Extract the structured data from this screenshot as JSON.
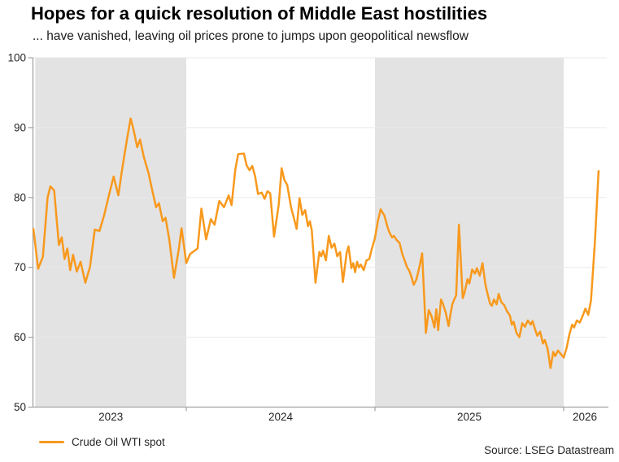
{
  "header": {
    "title": "Hopes for a quick resolution of Middle East hostilities",
    "subtitle": "... have vanished, leaving oil prices prone to jumps upon geopolitical newsflow"
  },
  "legend": {
    "label": "Crude Oil WTI spot"
  },
  "source": {
    "text": "Source: LSEG Datastream"
  },
  "colors": {
    "line": "#F8991D",
    "band": "#E3E3E3",
    "grid": "#EAEAEA",
    "axis": "#A3A3A3",
    "tick_label": "#262626"
  },
  "chart_data": {
    "type": "line",
    "title": "Hopes for a quick resolution of Middle East hostilities",
    "subtitle": "... have vanished, leaving oil prices prone to jumps upon geopolitical newsflow",
    "xlabel": "",
    "ylabel": "",
    "grid": true,
    "legend_position": "bottom-left",
    "ylim": [
      50,
      100
    ],
    "y_ticks": [
      50,
      60,
      70,
      80,
      90,
      100
    ],
    "x_domain_years": [
      2023.185,
      2026.228
    ],
    "x_tick_years": [
      2024,
      2025,
      2026
    ],
    "year_labels": [
      {
        "text": "2023",
        "year": 2023.6
      },
      {
        "text": "2024",
        "year": 2024.5
      },
      {
        "text": "2025",
        "year": 2025.5
      },
      {
        "text": "2026",
        "year": 2026.112
      }
    ],
    "shaded_year_bands": [
      [
        2023.2,
        2024.0
      ],
      [
        2025.0,
        2026.0
      ]
    ],
    "series": [
      {
        "name": "Crude Oil WTI spot",
        "color": "#F8991D",
        "points": [
          [
            2023.19,
            75.5
          ],
          [
            2023.215,
            69.8
          ],
          [
            2023.24,
            71.5
          ],
          [
            2023.265,
            80.0
          ],
          [
            2023.28,
            81.6
          ],
          [
            2023.3,
            81.0
          ],
          [
            2023.325,
            73.2
          ],
          [
            2023.34,
            74.3
          ],
          [
            2023.355,
            71.2
          ],
          [
            2023.37,
            72.7
          ],
          [
            2023.385,
            69.6
          ],
          [
            2023.4,
            71.8
          ],
          [
            2023.42,
            69.4
          ],
          [
            2023.44,
            70.8
          ],
          [
            2023.465,
            67.8
          ],
          [
            2023.49,
            70.1
          ],
          [
            2023.515,
            75.4
          ],
          [
            2023.54,
            75.2
          ],
          [
            2023.565,
            77.5
          ],
          [
            2023.59,
            80.3
          ],
          [
            2023.615,
            83.0
          ],
          [
            2023.64,
            80.3
          ],
          [
            2023.66,
            84.0
          ],
          [
            2023.685,
            88.2
          ],
          [
            2023.705,
            91.3
          ],
          [
            2023.72,
            89.8
          ],
          [
            2023.74,
            87.2
          ],
          [
            2023.755,
            88.3
          ],
          [
            2023.775,
            85.8
          ],
          [
            2023.8,
            83.5
          ],
          [
            2023.82,
            81.0
          ],
          [
            2023.84,
            78.6
          ],
          [
            2023.855,
            79.2
          ],
          [
            2023.875,
            76.6
          ],
          [
            2023.89,
            77.1
          ],
          [
            2023.91,
            74.0
          ],
          [
            2023.935,
            68.5
          ],
          [
            2023.96,
            72.5
          ],
          [
            2023.975,
            75.6
          ],
          [
            2024.0,
            70.6
          ],
          [
            2024.02,
            71.9
          ],
          [
            2024.04,
            72.3
          ],
          [
            2024.06,
            72.7
          ],
          [
            2024.08,
            78.4
          ],
          [
            2024.105,
            74.0
          ],
          [
            2024.13,
            76.9
          ],
          [
            2024.15,
            76.1
          ],
          [
            2024.175,
            79.5
          ],
          [
            2024.2,
            78.6
          ],
          [
            2024.225,
            80.3
          ],
          [
            2024.24,
            78.9
          ],
          [
            2024.26,
            84.0
          ],
          [
            2024.275,
            86.2
          ],
          [
            2024.305,
            86.3
          ],
          [
            2024.32,
            84.6
          ],
          [
            2024.335,
            83.9
          ],
          [
            2024.35,
            84.5
          ],
          [
            2024.365,
            83.0
          ],
          [
            2024.38,
            80.5
          ],
          [
            2024.4,
            80.7
          ],
          [
            2024.415,
            79.8
          ],
          [
            2024.43,
            80.9
          ],
          [
            2024.445,
            80.6
          ],
          [
            2024.465,
            74.4
          ],
          [
            2024.49,
            79.0
          ],
          [
            2024.505,
            84.2
          ],
          [
            2024.52,
            82.5
          ],
          [
            2024.535,
            81.8
          ],
          [
            2024.555,
            78.6
          ],
          [
            2024.57,
            77.1
          ],
          [
            2024.585,
            75.5
          ],
          [
            2024.6,
            79.9
          ],
          [
            2024.615,
            77.5
          ],
          [
            2024.63,
            78.2
          ],
          [
            2024.645,
            75.9
          ],
          [
            2024.655,
            76.6
          ],
          [
            2024.665,
            75.3
          ],
          [
            2024.685,
            67.8
          ],
          [
            2024.705,
            72.2
          ],
          [
            2024.715,
            71.6
          ],
          [
            2024.725,
            72.4
          ],
          [
            2024.74,
            71.0
          ],
          [
            2024.755,
            74.5
          ],
          [
            2024.77,
            72.8
          ],
          [
            2024.785,
            73.4
          ],
          [
            2024.8,
            71.6
          ],
          [
            2024.815,
            72.2
          ],
          [
            2024.83,
            67.9
          ],
          [
            2024.85,
            72.1
          ],
          [
            2024.86,
            73.0
          ],
          [
            2024.875,
            69.9
          ],
          [
            2024.885,
            70.6
          ],
          [
            2024.895,
            69.3
          ],
          [
            2024.905,
            70.8
          ],
          [
            2024.915,
            70.0
          ],
          [
            2024.925,
            70.4
          ],
          [
            2024.94,
            69.6
          ],
          [
            2024.955,
            71.0
          ],
          [
            2024.97,
            71.2
          ],
          [
            2024.985,
            72.8
          ],
          [
            2025.0,
            74.2
          ],
          [
            2025.015,
            76.6
          ],
          [
            2025.03,
            78.3
          ],
          [
            2025.05,
            77.4
          ],
          [
            2025.065,
            75.9
          ],
          [
            2025.075,
            75.1
          ],
          [
            2025.09,
            74.3
          ],
          [
            2025.1,
            74.5
          ],
          [
            2025.115,
            73.9
          ],
          [
            2025.13,
            73.5
          ],
          [
            2025.145,
            71.9
          ],
          [
            2025.16,
            70.8
          ],
          [
            2025.17,
            70.0
          ],
          [
            2025.18,
            69.6
          ],
          [
            2025.19,
            68.9
          ],
          [
            2025.205,
            67.5
          ],
          [
            2025.22,
            68.3
          ],
          [
            2025.235,
            70.0
          ],
          [
            2025.25,
            72.0
          ],
          [
            2025.27,
            60.6
          ],
          [
            2025.285,
            63.9
          ],
          [
            2025.3,
            63.0
          ],
          [
            2025.315,
            61.4
          ],
          [
            2025.325,
            64.0
          ],
          [
            2025.335,
            61.0
          ],
          [
            2025.35,
            65.4
          ],
          [
            2025.36,
            64.8
          ],
          [
            2025.375,
            63.5
          ],
          [
            2025.39,
            61.6
          ],
          [
            2025.4,
            63.3
          ],
          [
            2025.41,
            64.7
          ],
          [
            2025.42,
            65.4
          ],
          [
            2025.43,
            66.0
          ],
          [
            2025.445,
            76.1
          ],
          [
            2025.465,
            65.6
          ],
          [
            2025.475,
            66.4
          ],
          [
            2025.49,
            68.3
          ],
          [
            2025.5,
            67.7
          ],
          [
            2025.515,
            69.7
          ],
          [
            2025.53,
            69.1
          ],
          [
            2025.54,
            69.9
          ],
          [
            2025.555,
            68.8
          ],
          [
            2025.57,
            70.6
          ],
          [
            2025.585,
            67.6
          ],
          [
            2025.595,
            66.4
          ],
          [
            2025.61,
            64.8
          ],
          [
            2025.62,
            64.5
          ],
          [
            2025.63,
            65.4
          ],
          [
            2025.645,
            64.7
          ],
          [
            2025.655,
            66.2
          ],
          [
            2025.67,
            65.0
          ],
          [
            2025.685,
            64.6
          ],
          [
            2025.7,
            63.7
          ],
          [
            2025.715,
            63.1
          ],
          [
            2025.725,
            61.8
          ],
          [
            2025.735,
            62.2
          ],
          [
            2025.75,
            60.6
          ],
          [
            2025.765,
            60.0
          ],
          [
            2025.78,
            62.0
          ],
          [
            2025.795,
            61.5
          ],
          [
            2025.81,
            62.4
          ],
          [
            2025.825,
            61.8
          ],
          [
            2025.835,
            62.3
          ],
          [
            2025.85,
            61.0
          ],
          [
            2025.86,
            60.2
          ],
          [
            2025.875,
            60.8
          ],
          [
            2025.89,
            59.1
          ],
          [
            2025.9,
            59.6
          ],
          [
            2025.915,
            58.3
          ],
          [
            2025.93,
            55.6
          ],
          [
            2025.945,
            57.9
          ],
          [
            2025.955,
            57.3
          ],
          [
            2025.97,
            58.1
          ],
          [
            2026.0,
            57.1
          ],
          [
            2026.015,
            58.4
          ],
          [
            2026.03,
            60.4
          ],
          [
            2026.045,
            61.8
          ],
          [
            2026.055,
            61.4
          ],
          [
            2026.07,
            62.4
          ],
          [
            2026.085,
            62.1
          ],
          [
            2026.1,
            63.0
          ],
          [
            2026.115,
            64.1
          ],
          [
            2026.13,
            63.2
          ],
          [
            2026.145,
            65.3
          ],
          [
            2026.165,
            73.5
          ],
          [
            2026.185,
            83.8
          ]
        ]
      }
    ]
  }
}
